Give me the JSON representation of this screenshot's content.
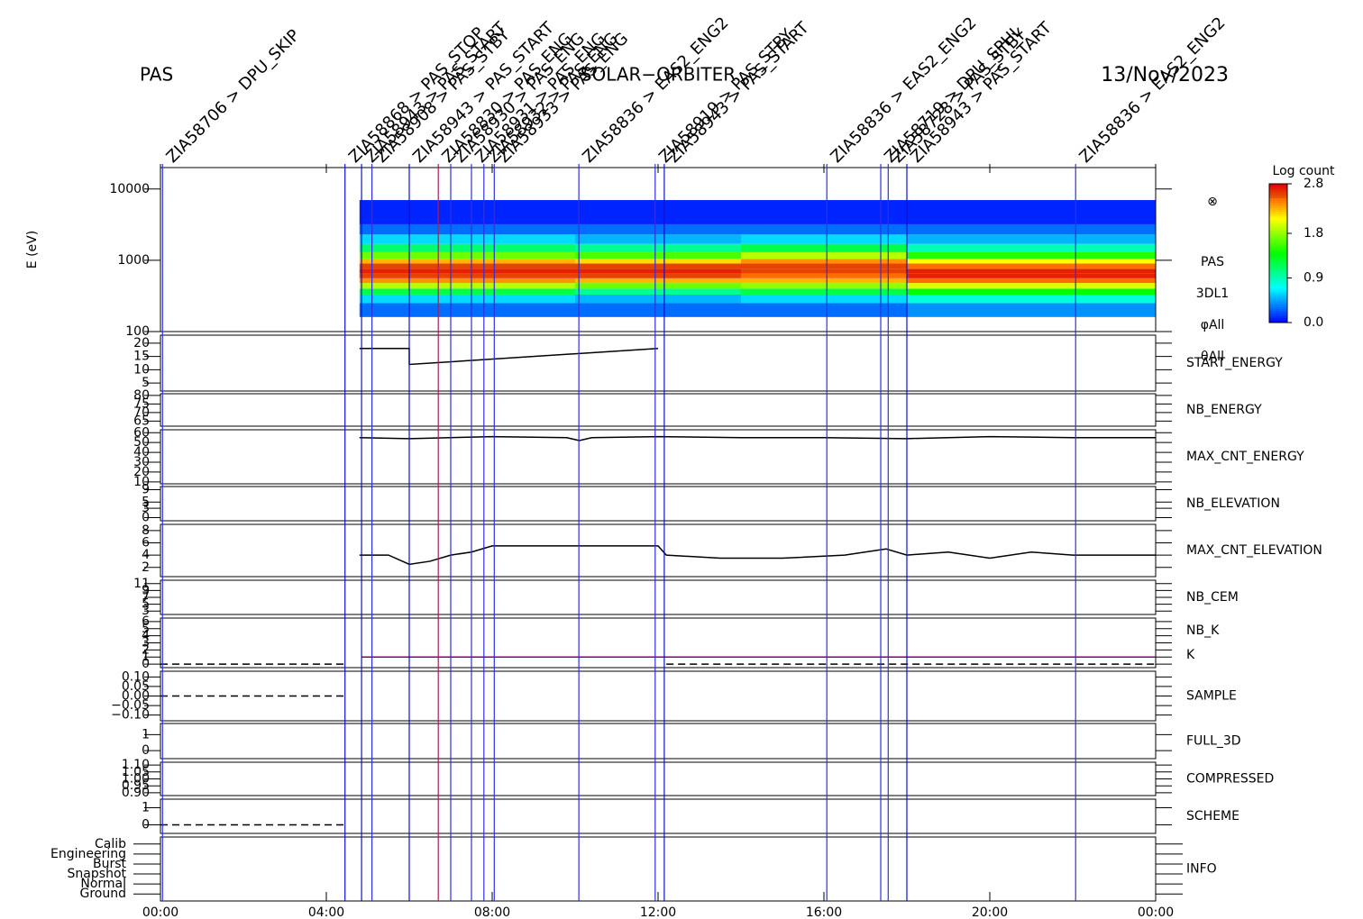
{
  "chart_data": {
    "type": "stacked-panels",
    "title_left": "PAS",
    "title_center": "SOLAR−ORBITER",
    "title_right": "13/Nov/2023",
    "xlim": [
      0,
      24
    ],
    "xticks": [
      {
        "value": 0,
        "label": "00:00"
      },
      {
        "value": 4,
        "label": "04:00"
      },
      {
        "value": 8,
        "label": "08:00"
      },
      {
        "value": 12,
        "label": "12:00"
      },
      {
        "value": 16,
        "label": "16:00"
      },
      {
        "value": 20,
        "label": "20:00"
      },
      {
        "value": 24,
        "label": "00:00"
      }
    ],
    "events": [
      {
        "time": 0.05,
        "label": "ZIA58706 > DPU_SKIP",
        "color": "#3030e0"
      },
      {
        "time": 4.45,
        "label": "ZIA58868 > PAS_STOP",
        "color": "#1010d0"
      },
      {
        "time": 4.85,
        "label": "ZIA58943 > PAS_START",
        "color": "#1010d0"
      },
      {
        "time": 5.1,
        "label": "ZIA58908 > PAS_STBY",
        "color": "#3030e0"
      },
      {
        "time": 6.0,
        "label": "ZIA58943 > PAS_START",
        "color": "#1010d0"
      },
      {
        "time": 6.7,
        "label": "ZIA58830 > PAS_ENG",
        "color": "#a02060"
      },
      {
        "time": 7.0,
        "label": "ZIA58930 > PAS_ENG",
        "color": "#3030e0"
      },
      {
        "time": 7.5,
        "label": "ZIA58931 > PAS_ENG",
        "color": "#3030e0"
      },
      {
        "time": 7.8,
        "label": "ZIA58932 > PAS_ENG",
        "color": "#3030e0"
      },
      {
        "time": 8.05,
        "label": "ZIA58933 > PAS_ENG",
        "color": "#3030e0"
      },
      {
        "time": 10.09,
        "label": "ZIA58836 > EAS2_ENG2",
        "color": "#3030e0"
      },
      {
        "time": 11.93,
        "label": "ZIA58919 > PAS_STBY",
        "color": "#3030e0"
      },
      {
        "time": 12.15,
        "label": "ZIA58943 > PAS_START",
        "color": "#1010d0"
      },
      {
        "time": 16.07,
        "label": "ZIA58836 > EAS2_ENG2",
        "color": "#3030e0"
      },
      {
        "time": 17.37,
        "label": "ZIA58719 > DPU_SPHL",
        "color": "#3030e0"
      },
      {
        "time": 17.55,
        "label": "ZIA58728 > PAS_STBY",
        "color": "#3030e0"
      },
      {
        "time": 18.0,
        "label": "ZIA58943 > PAS_START",
        "color": "#1010d0"
      },
      {
        "time": 22.07,
        "label": "ZIA58836 > EAS2_ENG2",
        "color": "#3030e0"
      }
    ],
    "colorbar": {
      "title": "Log count",
      "clim": [
        0,
        2.8
      ],
      "ticks": [
        {
          "value": 0,
          "label": "0.0"
        },
        {
          "value": 0.9,
          "label": "0.9"
        },
        {
          "value": 1.8,
          "label": "1.8"
        },
        2.8
      ]
    },
    "panels": [
      {
        "ylabel": "E (eV)",
        "log": true,
        "ylim": [
          100,
          20000
        ],
        "yticks": [
          100,
          1000,
          10000
        ],
        "right_labels": [
          "⊗",
          "PAS",
          "3DL1",
          "φAll",
          "θAll"
        ],
        "spectrogram": {
          "time_edges": [
            4.8,
            10,
            14,
            18,
            24
          ],
          "energy_edges": [
            160,
            250,
            330,
            400,
            480,
            560,
            650,
            760,
            900,
            1050,
            1300,
            1700,
            2300,
            3200,
            7000
          ],
          "log_count": [
            [
              0.3,
              0.6,
              1.2,
              1.9,
              2.4,
              2.6,
              2.7,
              2.6,
              2.3,
              1.7,
              1.1,
              0.6,
              0.3,
              0.1
            ],
            [
              0.3,
              0.5,
              1.0,
              1.7,
              2.3,
              2.6,
              2.7,
              2.6,
              2.2,
              1.6,
              1.0,
              0.5,
              0.3,
              0.1
            ],
            [
              0.3,
              0.6,
              1.2,
              1.8,
              2.3,
              2.5,
              2.6,
              2.6,
              2.4,
              1.9,
              1.2,
              0.6,
              0.3,
              0.1
            ],
            [
              0.4,
              0.8,
              1.4,
              2.0,
              2.5,
              2.7,
              2.7,
              2.5,
              2.1,
              1.5,
              0.9,
              0.5,
              0.3,
              0.1
            ]
          ]
        }
      },
      {
        "labels": [
          {
            "text": "START_ENERGY",
            "color": "#000000"
          }
        ],
        "ylim": [
          2,
          23
        ],
        "yticks": [
          5,
          10,
          15,
          20
        ],
        "series": [
          {
            "color": "#000000",
            "x": [
              4.8,
              6.0,
              6.0,
              12.0
            ],
            "values": [
              18,
              18,
              12,
              18
            ]
          }
        ]
      },
      {
        "labels": [
          {
            "text": "NB_ENERGY",
            "color": "#2020b0"
          }
        ],
        "ylim": [
          62,
          81
        ],
        "yticks": [
          65,
          70,
          75,
          80
        ]
      },
      {
        "labels": [
          {
            "text": "MAX_CNT_ENERGY",
            "color": "#000000"
          }
        ],
        "ylim": [
          8,
          63
        ],
        "yticks": [
          10,
          20,
          30,
          40,
          50,
          60
        ],
        "series": [
          {
            "color": "#000000",
            "x": [
              4.8,
              6,
              8,
              9.8,
              10.1,
              10.4,
              12,
              14,
              16,
              18,
              20,
              22,
              24
            ],
            "values": [
              55,
              54,
              56,
              55,
              52,
              55,
              56,
              55,
              55,
              54,
              56,
              55,
              55
            ]
          }
        ]
      },
      {
        "labels": [
          {
            "text": "NB_ELEVATION",
            "color": "#2020b0"
          }
        ],
        "ylim": [
          -1,
          10
        ],
        "yticks": [
          0,
          3,
          5,
          9
        ]
      },
      {
        "labels": [
          {
            "text": "MAX_CNT_ELEVATION",
            "color": "#000000"
          }
        ],
        "ylim": [
          0.5,
          9
        ],
        "yticks": [
          2,
          4,
          6,
          8
        ],
        "series": [
          {
            "color": "#000000",
            "x": [
              4.8,
              5.5,
              6,
              6.5,
              7,
              7.5,
              8,
              9,
              10,
              12,
              12.2,
              13.5,
              15,
              16.5,
              17.5,
              18,
              19,
              20,
              21,
              22,
              24
            ],
            "values": [
              4,
              4,
              2.5,
              3,
              4,
              4.5,
              5.5,
              5.5,
              5.5,
              5.5,
              4,
              3.5,
              3.5,
              4,
              5,
              4,
              4.5,
              3.5,
              4.5,
              4,
              4
            ]
          }
        ]
      },
      {
        "labels": [
          {
            "text": "NB_CEM",
            "color": "#2020b0"
          }
        ],
        "ylim": [
          2,
          12
        ],
        "yticks": [
          3,
          5,
          7,
          9,
          11
        ]
      },
      {
        "labels": [
          {
            "text": "NB_K",
            "color": "#d02020"
          },
          {
            "text": "K",
            "color": "#2020b0"
          }
        ],
        "ylim": [
          -0.5,
          6.5
        ],
        "yticks": [
          0,
          1,
          2,
          3,
          4,
          5,
          6
        ],
        "series": [
          {
            "color": "#000000",
            "dash": true,
            "x": [
              0,
              4.45
            ],
            "values": [
              0,
              0
            ]
          },
          {
            "color": "#800080",
            "x": [
              4.85,
              24
            ],
            "values": [
              1,
              1
            ]
          },
          {
            "color": "#000000",
            "dash": true,
            "x": [
              12.2,
              24
            ],
            "values": [
              0,
              0
            ]
          }
        ]
      },
      {
        "labels": [
          {
            "text": "SAMPLE",
            "color": "#2020b0"
          }
        ],
        "ylim": [
          -0.13,
          0.13
        ],
        "yticks": [
          {
            "value": -0.1,
            "label": "−0.10"
          },
          {
            "value": -0.05,
            "label": "−0.05"
          },
          {
            "value": 0,
            "label": "0.00"
          },
          0.05,
          {
            "value": 0.1,
            "label": "0.10"
          }
        ],
        "series": [
          {
            "color": "#000000",
            "dash": true,
            "x": [
              0,
              4.45
            ],
            "values": [
              0,
              0
            ]
          }
        ]
      },
      {
        "labels": [
          {
            "text": "FULL_3D",
            "color": "#2020b0"
          }
        ],
        "ylim": [
          -0.5,
          1.7
        ],
        "yticks": [
          0,
          1
        ]
      },
      {
        "labels": [
          {
            "text": "COMPRESSED",
            "color": "#000000"
          }
        ],
        "ylim": [
          0.88,
          1.12
        ],
        "yticks": [
          {
            "value": 0.9,
            "label": "0.90"
          },
          0.95,
          {
            "value": 1,
            "label": "1.00"
          },
          1.05,
          {
            "value": 1.1,
            "label": "1.10"
          }
        ]
      },
      {
        "labels": [
          {
            "text": "SCHEME",
            "color": "#000000"
          }
        ],
        "ylim": [
          -0.5,
          1.5
        ],
        "yticks": [
          0,
          1
        ],
        "series": [
          {
            "color": "#000000",
            "dash": true,
            "x": [
              0,
              4.45
            ],
            "values": [
              0,
              0
            ]
          }
        ]
      },
      {
        "labels": [
          {
            "text": "INFO",
            "color": "#000000"
          }
        ],
        "ylim": [
          -0.7,
          5.7
        ],
        "categories": [
          "Ground",
          "Normal",
          "Snapshot",
          "Burst",
          "Engineering",
          "Calib"
        ]
      }
    ]
  }
}
